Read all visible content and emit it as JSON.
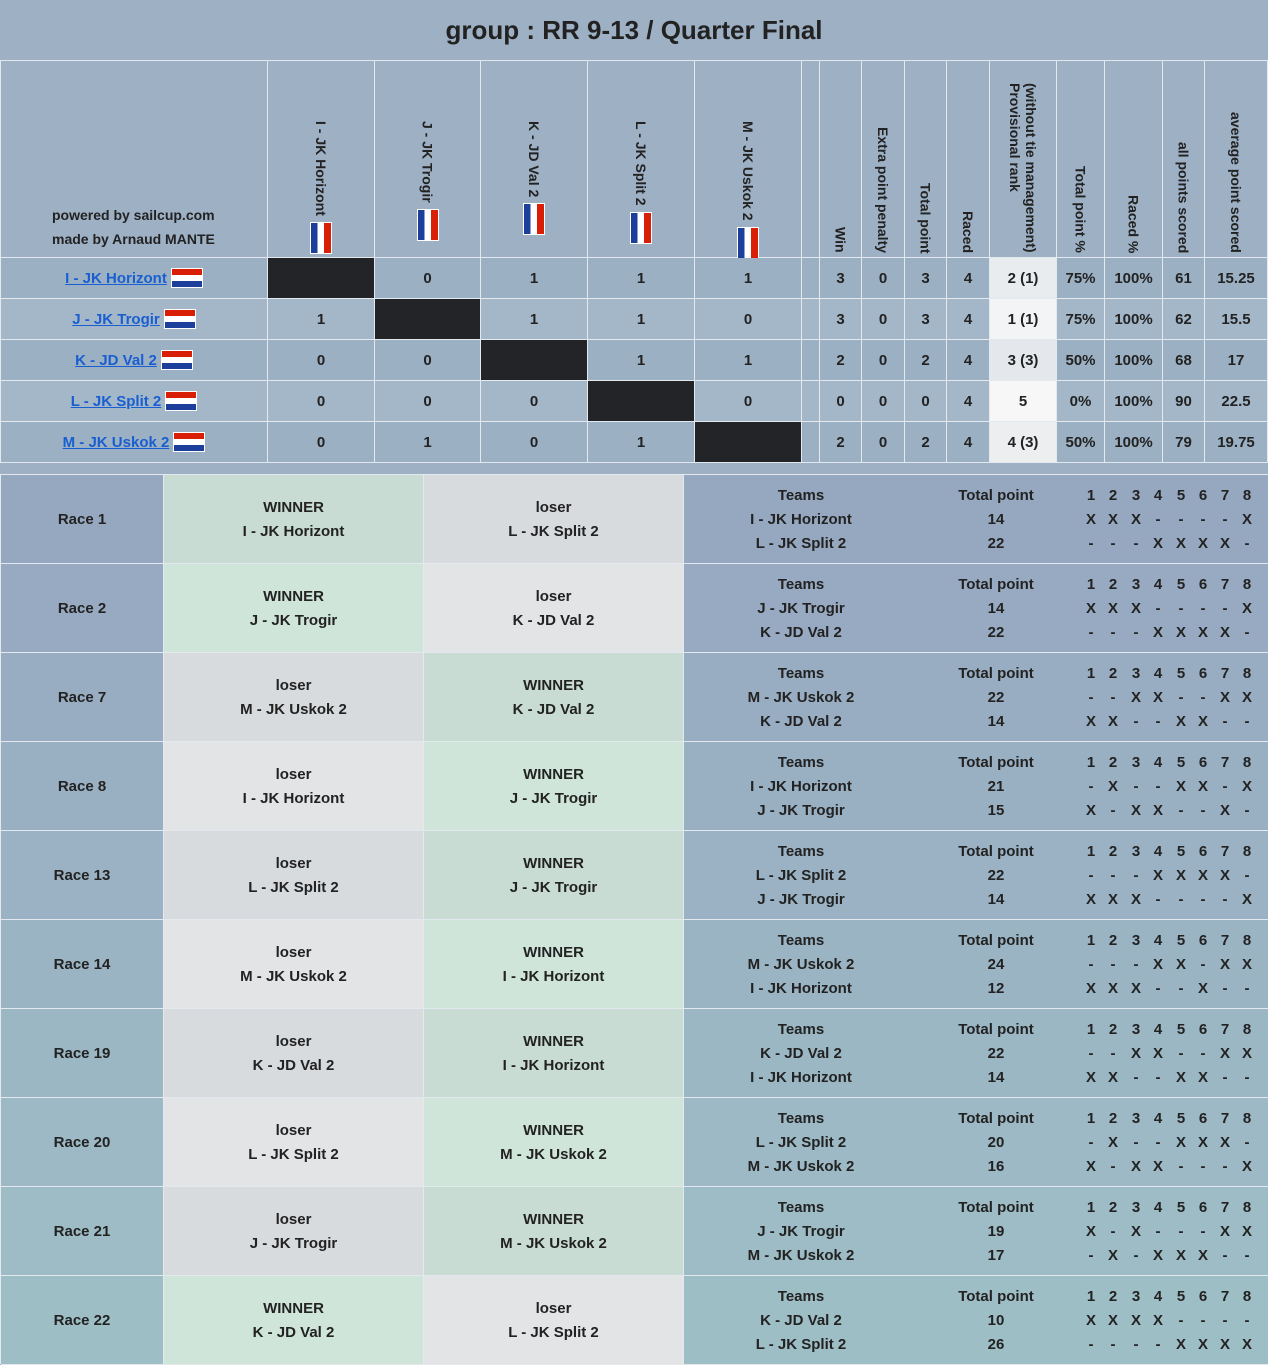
{
  "title": "group : RR 9-13 / Quarter Final",
  "credits": [
    "powered by sailcup.com",
    "made by Arnaud MANTE"
  ],
  "standings": {
    "team_headers": [
      "I - JK Horizont",
      "J - JK Trogir",
      "K - JD Val 2",
      "L - JK Split 2",
      "M - JK Uskok 2"
    ],
    "stat_headers": [
      "Win",
      "Extra point penalty",
      "Total point",
      "Raced",
      {
        "lines": [
          "(without tie management)",
          "Provisional rank"
        ]
      },
      "Total point %",
      "Raced %",
      "all points scored",
      "average point scored"
    ],
    "rows": [
      {
        "team": "I - JK Horizont",
        "results": [
          null,
          0,
          1,
          1,
          1
        ],
        "stats": [
          3,
          0,
          3,
          4,
          "2 (1)",
          "75%",
          "100%",
          61,
          15.25
        ]
      },
      {
        "team": "J - JK Trogir",
        "results": [
          1,
          null,
          1,
          1,
          0
        ],
        "stats": [
          3,
          0,
          3,
          4,
          "1 (1)",
          "75%",
          "100%",
          62,
          15.5
        ]
      },
      {
        "team": "K - JD Val 2",
        "results": [
          0,
          0,
          null,
          1,
          1
        ],
        "stats": [
          2,
          0,
          2,
          4,
          "3 (3)",
          "50%",
          "100%",
          68,
          17
        ]
      },
      {
        "team": "L - JK Split 2",
        "results": [
          0,
          0,
          0,
          null,
          0
        ],
        "stats": [
          0,
          0,
          0,
          4,
          "5",
          "0%",
          "100%",
          90,
          22.5
        ]
      },
      {
        "team": "M - JK Uskok 2",
        "results": [
          0,
          1,
          0,
          1,
          null
        ],
        "stats": [
          2,
          0,
          2,
          4,
          "4 (3)",
          "50%",
          "100%",
          79,
          19.75
        ]
      }
    ]
  },
  "race_headers": {
    "teams": "Teams",
    "points": "Total point",
    "leg_numbers": [
      1,
      2,
      3,
      4,
      5,
      6,
      7,
      8
    ]
  },
  "races": [
    {
      "name": "Race 1",
      "left": {
        "label": "WINNER",
        "team": "I - JK Horizont"
      },
      "right": {
        "label": "loser",
        "team": "L - JK Split 2"
      },
      "teams": [
        "I - JK Horizont",
        "L - JK Split 2"
      ],
      "points": [
        14,
        22
      ],
      "legs": [
        [
          "X",
          "X",
          "X",
          "-",
          "-",
          "-",
          "-",
          "X"
        ],
        [
          "-",
          "-",
          "-",
          "X",
          "X",
          "X",
          "X",
          "-"
        ]
      ]
    },
    {
      "name": "Race 2",
      "left": {
        "label": "WINNER",
        "team": "J - JK Trogir"
      },
      "right": {
        "label": "loser",
        "team": "K - JD Val 2"
      },
      "teams": [
        "J - JK Trogir",
        "K - JD Val 2"
      ],
      "points": [
        14,
        22
      ],
      "legs": [
        [
          "X",
          "X",
          "X",
          "-",
          "-",
          "-",
          "-",
          "X"
        ],
        [
          "-",
          "-",
          "-",
          "X",
          "X",
          "X",
          "X",
          "-"
        ]
      ]
    },
    {
      "name": "Race 7",
      "left": {
        "label": "loser",
        "team": "M - JK Uskok 2"
      },
      "right": {
        "label": "WINNER",
        "team": "K - JD Val 2"
      },
      "teams": [
        "M - JK Uskok 2",
        "K - JD Val 2"
      ],
      "points": [
        22,
        14
      ],
      "legs": [
        [
          "-",
          "-",
          "X",
          "X",
          "-",
          "-",
          "X",
          "X"
        ],
        [
          "X",
          "X",
          "-",
          "-",
          "X",
          "X",
          "-",
          "-"
        ]
      ]
    },
    {
      "name": "Race 8",
      "left": {
        "label": "loser",
        "team": "I - JK Horizont"
      },
      "right": {
        "label": "WINNER",
        "team": "J - JK Trogir"
      },
      "teams": [
        "I - JK Horizont",
        "J - JK Trogir"
      ],
      "points": [
        21,
        15
      ],
      "legs": [
        [
          "-",
          "X",
          "-",
          "-",
          "X",
          "X",
          "-",
          "X"
        ],
        [
          "X",
          "-",
          "X",
          "X",
          "-",
          "-",
          "X",
          "-"
        ]
      ]
    },
    {
      "name": "Race 13",
      "left": {
        "label": "loser",
        "team": "L - JK Split 2"
      },
      "right": {
        "label": "WINNER",
        "team": "J - JK Trogir"
      },
      "teams": [
        "L - JK Split 2",
        "J - JK Trogir"
      ],
      "points": [
        22,
        14
      ],
      "legs": [
        [
          "-",
          "-",
          "-",
          "X",
          "X",
          "X",
          "X",
          "-"
        ],
        [
          "X",
          "X",
          "X",
          "-",
          "-",
          "-",
          "-",
          "X"
        ]
      ]
    },
    {
      "name": "Race 14",
      "left": {
        "label": "loser",
        "team": "M - JK Uskok 2"
      },
      "right": {
        "label": "WINNER",
        "team": "I - JK Horizont"
      },
      "teams": [
        "M - JK Uskok 2",
        "I - JK Horizont"
      ],
      "points": [
        24,
        12
      ],
      "legs": [
        [
          "-",
          "-",
          "-",
          "X",
          "X",
          "-",
          "X",
          "X"
        ],
        [
          "X",
          "X",
          "X",
          "-",
          "-",
          "X",
          "-",
          "-"
        ]
      ]
    },
    {
      "name": "Race 19",
      "left": {
        "label": "loser",
        "team": "K - JD Val 2"
      },
      "right": {
        "label": "WINNER",
        "team": "I - JK Horizont"
      },
      "teams": [
        "K - JD Val 2",
        "I - JK Horizont"
      ],
      "points": [
        22,
        14
      ],
      "legs": [
        [
          "-",
          "-",
          "X",
          "X",
          "-",
          "-",
          "X",
          "X"
        ],
        [
          "X",
          "X",
          "-",
          "-",
          "X",
          "X",
          "-",
          "-"
        ]
      ]
    },
    {
      "name": "Race 20",
      "left": {
        "label": "loser",
        "team": "L - JK Split 2"
      },
      "right": {
        "label": "WINNER",
        "team": "M - JK Uskok 2"
      },
      "teams": [
        "L - JK Split 2",
        "M - JK Uskok 2"
      ],
      "points": [
        20,
        16
      ],
      "legs": [
        [
          "-",
          "X",
          "-",
          "-",
          "X",
          "X",
          "X",
          "-"
        ],
        [
          "X",
          "-",
          "X",
          "X",
          "-",
          "-",
          "-",
          "X"
        ]
      ]
    },
    {
      "name": "Race 21",
      "left": {
        "label": "loser",
        "team": "J - JK Trogir"
      },
      "right": {
        "label": "WINNER",
        "team": "M - JK Uskok 2"
      },
      "teams": [
        "J - JK Trogir",
        "M - JK Uskok 2"
      ],
      "points": [
        19,
        17
      ],
      "legs": [
        [
          "X",
          "-",
          "X",
          "-",
          "-",
          "-",
          "X",
          "X"
        ],
        [
          "-",
          "X",
          "-",
          "X",
          "X",
          "X",
          "-",
          "-"
        ]
      ]
    },
    {
      "name": "Race 22",
      "left": {
        "label": "WINNER",
        "team": "K - JD Val 2"
      },
      "right": {
        "label": "loser",
        "team": "L - JK Split 2"
      },
      "teams": [
        "K - JD Val 2",
        "L - JK Split 2"
      ],
      "points": [
        10,
        26
      ],
      "legs": [
        [
          "X",
          "X",
          "X",
          "X",
          "-",
          "-",
          "-",
          "-"
        ],
        [
          "-",
          "-",
          "-",
          "-",
          "X",
          "X",
          "X",
          "X"
        ]
      ]
    }
  ]
}
